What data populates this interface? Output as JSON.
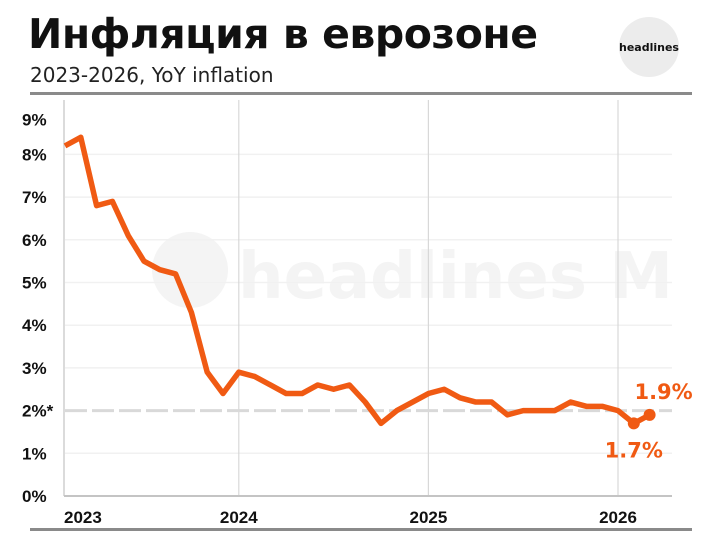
{
  "header": {
    "title": "Инфляция в еврозоне",
    "subtitle": "2023-2026, YoY inflation",
    "logo": "headlines"
  },
  "watermark": "headlines M",
  "chart_data": {
    "type": "line",
    "title": "Инфляция в еврозоне",
    "subtitle": "2023-2026, YoY inflation",
    "color": "#f05a13",
    "ylim": [
      0,
      9
    ],
    "yticks": [
      "0%",
      "1%",
      "2%*",
      "3%",
      "4%",
      "5%",
      "6%",
      "7%",
      "8%",
      "9%"
    ],
    "reference_line": {
      "value": 2,
      "style": "dashed",
      "color": "#d9d9d9"
    },
    "grid": true,
    "x": [
      "2023-01",
      "2023-02",
      "2023-03",
      "2023-04",
      "2023-05",
      "2023-06",
      "2023-07",
      "2023-08",
      "2023-09",
      "2023-10",
      "2023-11",
      "2023-12",
      "2024-01",
      "2024-02",
      "2024-03",
      "2024-04",
      "2024-05",
      "2024-06",
      "2024-07",
      "2024-08",
      "2024-09",
      "2024-10",
      "2024-11",
      "2024-12",
      "2025-01",
      "2025-02",
      "2025-03",
      "2025-04",
      "2025-05",
      "2025-06",
      "2025-07",
      "2025-08",
      "2025-09",
      "2025-10",
      "2025-11",
      "2025-12",
      "2026-01",
      "2026-02"
    ],
    "values": [
      8.2,
      8.4,
      6.8,
      6.9,
      6.1,
      5.5,
      5.3,
      5.2,
      4.3,
      2.9,
      2.4,
      2.9,
      2.8,
      2.6,
      2.4,
      2.4,
      2.6,
      2.5,
      2.6,
      2.2,
      1.7,
      2.0,
      2.2,
      2.4,
      2.5,
      2.3,
      2.2,
      2.2,
      1.9,
      2.0,
      2.0,
      2.0,
      2.2,
      2.1,
      2.1,
      2.0,
      1.7,
      1.9
    ],
    "xticks": [
      {
        "label": "2023",
        "at": "2023-01"
      },
      {
        "label": "2024",
        "at": "2023-12"
      },
      {
        "label": "2025",
        "at": "2024-12"
      },
      {
        "label": "2026",
        "at": "2025-12"
      }
    ],
    "annotations": [
      {
        "text": "1.7%",
        "at": "2026-01"
      },
      {
        "text": "1.9%",
        "at": "2026-02"
      }
    ]
  }
}
